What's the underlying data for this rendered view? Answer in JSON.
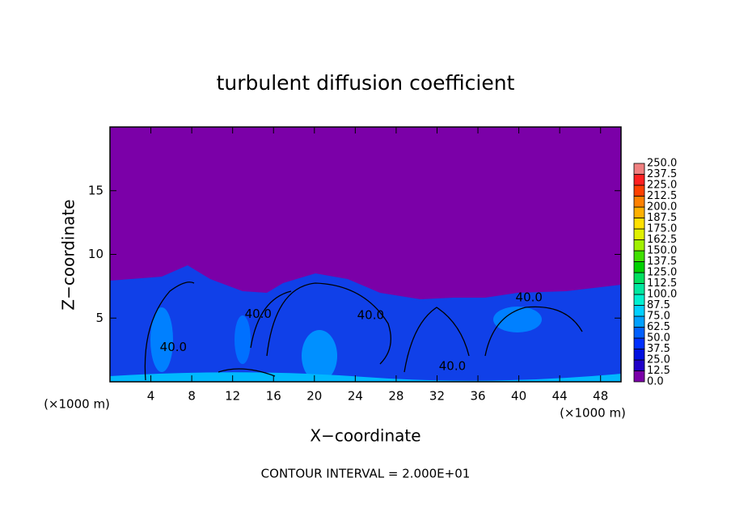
{
  "chart_data": {
    "type": "contour",
    "title": "turbulent diffusion coefficient",
    "xlabel": "X−coordinate",
    "ylabel": "Z−coordinate",
    "x_unit": "(×1000 m)",
    "xlim": [
      0,
      50
    ],
    "xticks": [
      4,
      8,
      12,
      16,
      20,
      24,
      28,
      32,
      36,
      40,
      44,
      48
    ],
    "ylim": [
      0,
      20
    ],
    "yticks": [
      5,
      10,
      15
    ],
    "colorbar": {
      "levels": [
        {
          "value": 0,
          "label": "0.0"
        },
        {
          "value": 12.5,
          "label": "12.5"
        },
        {
          "value": 25,
          "label": "25.0"
        },
        {
          "value": 37.5,
          "label": "37.5"
        },
        {
          "value": 50,
          "label": "50.0"
        },
        {
          "value": 62.5,
          "label": "62.5"
        },
        {
          "value": 75,
          "label": "75.0"
        },
        {
          "value": 87.5,
          "label": "87.5"
        },
        {
          "value": 100,
          "label": "100.0"
        },
        {
          "value": 112.5,
          "label": "112.5"
        },
        {
          "value": 125,
          "label": "125.0"
        },
        {
          "value": 137.5,
          "label": "137.5"
        },
        {
          "value": 150,
          "label": "150.0"
        },
        {
          "value": 162.5,
          "label": "162.5"
        },
        {
          "value": 175,
          "label": "175.0"
        },
        {
          "value": 187.5,
          "label": "187.5"
        },
        {
          "value": 200,
          "label": "200.0"
        },
        {
          "value": 212.5,
          "label": "212.5"
        },
        {
          "value": 225,
          "label": "225.0"
        },
        {
          "value": 237.5,
          "label": "237.5"
        },
        {
          "value": 250,
          "label": "250.0"
        }
      ],
      "colors": [
        "#7b00a8",
        "#2000c8",
        "#0010e0",
        "#0030ff",
        "#0060ff",
        "#00a0ff",
        "#00d0ff",
        "#00f0d0",
        "#00e8a0",
        "#00e060",
        "#00d000",
        "#40e000",
        "#a0f000",
        "#e0f000",
        "#ffe000",
        "#ffb000",
        "#ff8000",
        "#ff4000",
        "#ff2020",
        "#f08080"
      ]
    },
    "contour_labels": {
      "x": [
        6.2,
        14.5,
        25.5,
        33.5,
        41
      ],
      "z": [
        2.7,
        5.3,
        5.2,
        1.2,
        6.6
      ],
      "values": [
        40,
        40,
        40,
        40,
        40
      ],
      "value_labels": [
        "40.0",
        "40.0",
        "40.0",
        "40.0",
        "40.0"
      ]
    },
    "footnote": "CONTOUR INTERVAL = 2.000E+01"
  }
}
